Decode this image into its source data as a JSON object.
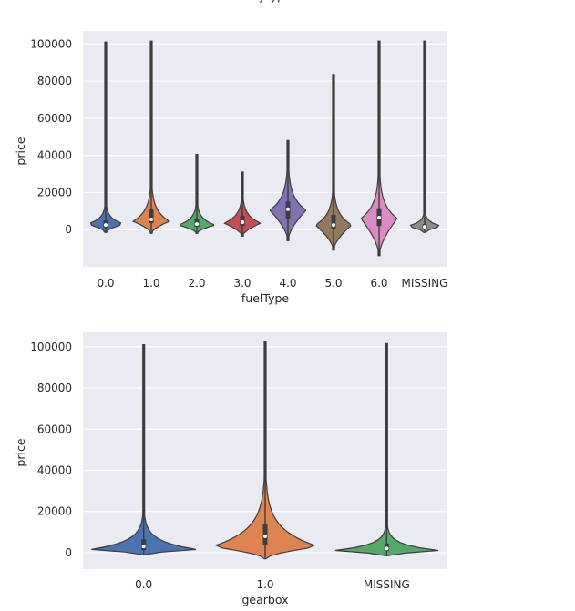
{
  "chart_data": [
    {
      "type": "violin",
      "title_fragment": "bodyType",
      "xlabel": "fuelType",
      "ylabel": "price",
      "ylim": [
        -20000,
        107000
      ],
      "yticks": [
        0,
        20000,
        40000,
        60000,
        80000,
        100000
      ],
      "grid": true,
      "categories": [
        "0.0",
        "1.0",
        "2.0",
        "3.0",
        "4.0",
        "5.0",
        "6.0",
        "MISSING"
      ],
      "colors": [
        "#4c72b0",
        "#dd8452",
        "#55a868",
        "#c44e52",
        "#8172b3",
        "#937860",
        "#da8bc3",
        "#8c8c8c"
      ],
      "series": [
        {
          "category": "0.0",
          "min": -1500,
          "q1": 1000,
          "median": 2500,
          "q3": 5000,
          "max": 101000,
          "peak": 3000
        },
        {
          "category": "1.0",
          "min": -2000,
          "q1": 3500,
          "median": 5500,
          "q3": 11000,
          "max": 101500,
          "peak": 4500
        },
        {
          "category": "2.0",
          "min": -2000,
          "q1": 1500,
          "median": 3000,
          "q3": 6000,
          "max": 40500,
          "peak": 2500
        },
        {
          "category": "3.0",
          "min": -3500,
          "q1": 2000,
          "median": 4000,
          "q3": 7500,
          "max": 31000,
          "peak": 3500
        },
        {
          "category": "4.0",
          "min": -6000,
          "q1": 6000,
          "median": 11000,
          "q3": 15000,
          "max": 48000,
          "peak": 10500
        },
        {
          "category": "5.0",
          "min": -11000,
          "q1": 500,
          "median": 2500,
          "q3": 8000,
          "max": 83500,
          "peak": 2500
        },
        {
          "category": "6.0",
          "min": -14000,
          "q1": 2000,
          "median": 6500,
          "q3": 11500,
          "max": 101500,
          "peak": 6000
        },
        {
          "category": "MISSING",
          "min": -1500,
          "q1": 600,
          "median": 1500,
          "q3": 3000,
          "max": 101500,
          "peak": 1800
        }
      ]
    },
    {
      "type": "violin",
      "xlabel": "gearbox",
      "ylabel": "price",
      "ylim": [
        -8000,
        107000
      ],
      "yticks": [
        0,
        20000,
        40000,
        60000,
        80000,
        100000
      ],
      "grid": true,
      "categories": [
        "0.0",
        "1.0",
        "MISSING"
      ],
      "colors": [
        "#4c72b0",
        "#dd8452",
        "#55a868"
      ],
      "series": [
        {
          "category": "0.0",
          "min": -1000,
          "q1": 1200,
          "median": 3000,
          "q3": 6500,
          "max": 101000,
          "peak": 1500
        },
        {
          "category": "1.0",
          "min": -3000,
          "q1": 3500,
          "median": 8000,
          "q3": 14000,
          "max": 102500,
          "peak": 3000
        },
        {
          "category": "MISSING",
          "min": -1500,
          "q1": 800,
          "median": 2000,
          "q3": 4500,
          "max": 101500,
          "peak": 1000
        }
      ]
    }
  ]
}
